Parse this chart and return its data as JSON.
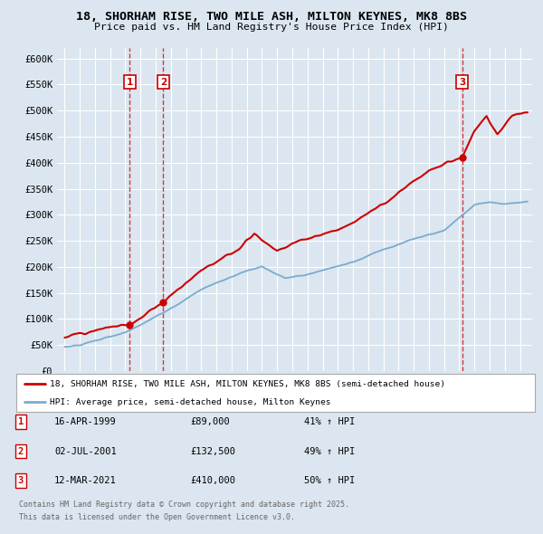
{
  "title1": "18, SHORHAM RISE, TWO MILE ASH, MILTON KEYNES, MK8 8BS",
  "title2": "Price paid vs. HM Land Registry's House Price Index (HPI)",
  "background_color": "#dce6f0",
  "plot_bg_color": "#dce6f0",
  "grid_color": "#ffffff",
  "red_line_color": "#cc0000",
  "blue_line_color": "#7aabcf",
  "ylim": [
    0,
    620000
  ],
  "yticks": [
    0,
    50000,
    100000,
    150000,
    200000,
    250000,
    300000,
    350000,
    400000,
    450000,
    500000,
    550000,
    600000
  ],
  "ytick_labels": [
    "£0",
    "£50K",
    "£100K",
    "£150K",
    "£200K",
    "£250K",
    "£300K",
    "£350K",
    "£400K",
    "£450K",
    "£500K",
    "£550K",
    "£600K"
  ],
  "sale_dates_num": [
    1999.29,
    2001.5,
    2021.19
  ],
  "sale_prices": [
    89000,
    132500,
    410000
  ],
  "sale_labels": [
    "1",
    "2",
    "3"
  ],
  "legend_line1": "18, SHORHAM RISE, TWO MILE ASH, MILTON KEYNES, MK8 8BS (semi-detached house)",
  "legend_line2": "HPI: Average price, semi-detached house, Milton Keynes",
  "table_data": [
    [
      "1",
      "16-APR-1999",
      "£89,000",
      "41% ↑ HPI"
    ],
    [
      "2",
      "02-JUL-2001",
      "£132,500",
      "49% ↑ HPI"
    ],
    [
      "3",
      "12-MAR-2021",
      "£410,000",
      "50% ↑ HPI"
    ]
  ],
  "footer": "Contains HM Land Registry data © Crown copyright and database right 2025.\nThis data is licensed under the Open Government Licence v3.0.",
  "xlim_start": 1994.5,
  "xlim_end": 2025.8
}
